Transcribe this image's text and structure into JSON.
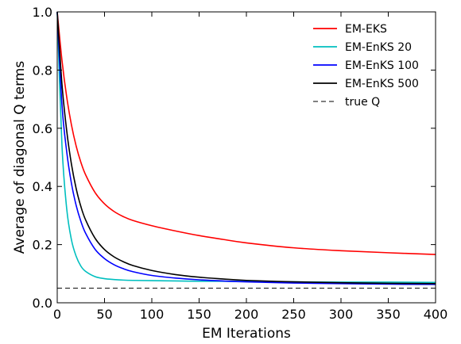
{
  "chart_data": {
    "type": "line",
    "xlabel": "EM Iterations",
    "ylabel": "Average of diagonal Q terms",
    "xlim": [
      0,
      400
    ],
    "ylim": [
      0.0,
      1.0
    ],
    "xticks": [
      "0",
      "50",
      "100",
      "150",
      "200",
      "250",
      "300",
      "350",
      "400"
    ],
    "yticks": [
      "0.0",
      "0.2",
      "0.4",
      "0.6",
      "0.8",
      "1.0"
    ],
    "grid": false,
    "legend_position": "top-right",
    "x": [
      0,
      5,
      10,
      15,
      20,
      25,
      30,
      40,
      50,
      60,
      70,
      80,
      100,
      125,
      150,
      175,
      200,
      250,
      300,
      350,
      400
    ],
    "series": [
      {
        "name": "EM-EKS",
        "color": "#ff0000",
        "style": "solid",
        "values": [
          1.0,
          0.834,
          0.708,
          0.612,
          0.539,
          0.483,
          0.44,
          0.379,
          0.34,
          0.314,
          0.296,
          0.283,
          0.265,
          0.247,
          0.231,
          0.218,
          0.206,
          0.189,
          0.179,
          0.172,
          0.166
        ]
      },
      {
        "name": "EM-EnKS 20",
        "color": "#00bfbf",
        "style": "solid",
        "values": [
          1.0,
          0.541,
          0.324,
          0.217,
          0.16,
          0.126,
          0.108,
          0.09,
          0.083,
          0.08,
          0.078,
          0.077,
          0.076,
          0.075,
          0.074,
          0.074,
          0.073,
          0.072,
          0.071,
          0.071,
          0.07
        ]
      },
      {
        "name": "EM-EnKS 100",
        "color": "#0000ff",
        "style": "solid",
        "values": [
          1.0,
          0.681,
          0.52,
          0.411,
          0.335,
          0.28,
          0.239,
          0.184,
          0.152,
          0.131,
          0.117,
          0.107,
          0.094,
          0.085,
          0.079,
          0.075,
          0.072,
          0.068,
          0.066,
          0.064,
          0.063
        ]
      },
      {
        "name": "EM-EnKS 500",
        "color": "#000000",
        "style": "solid",
        "values": [
          1.0,
          0.752,
          0.592,
          0.477,
          0.393,
          0.331,
          0.285,
          0.222,
          0.183,
          0.158,
          0.141,
          0.128,
          0.111,
          0.097,
          0.088,
          0.082,
          0.077,
          0.072,
          0.069,
          0.067,
          0.066
        ]
      },
      {
        "name": "true Q",
        "color": "#000000",
        "style": "dashed",
        "values": [
          0.05,
          0.05,
          0.05,
          0.05,
          0.05,
          0.05,
          0.05,
          0.05,
          0.05,
          0.05,
          0.05,
          0.05,
          0.05,
          0.05,
          0.05,
          0.05,
          0.05,
          0.05,
          0.05,
          0.05,
          0.05
        ]
      }
    ]
  }
}
